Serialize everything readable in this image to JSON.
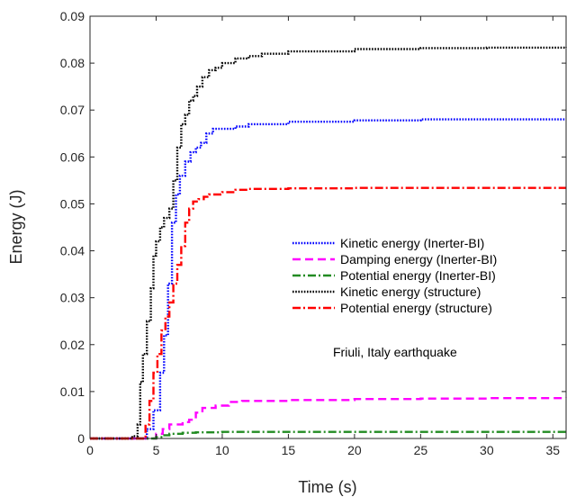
{
  "chart_data": {
    "type": "line",
    "title": "",
    "xlabel": "Time (s)",
    "ylabel": "Energy (J)",
    "xlim": [
      0,
      36
    ],
    "ylim": [
      0,
      0.09
    ],
    "xticks": [
      "0",
      "5",
      "10",
      "15",
      "20",
      "25",
      "30",
      "35"
    ],
    "yticks": [
      "0",
      "0.01",
      "0.02",
      "0.03",
      "0.04",
      "0.05",
      "0.06",
      "0.07",
      "0.08",
      "0.09"
    ],
    "grid": false,
    "legend_position": "center-right",
    "annotation": "Friuli, Italy earthquake",
    "series": [
      {
        "name": "Kinetic energy (Inerter-BI)",
        "color": "#0000ff",
        "style": "dotted",
        "x": [
          0,
          3.8,
          4.3,
          4.8,
          5.3,
          5.6,
          5.9,
          6.2,
          6.5,
          6.8,
          7.2,
          7.6,
          8.0,
          8.4,
          8.8,
          9.3,
          10,
          11,
          12,
          15,
          20,
          25,
          30,
          36
        ],
        "y": [
          0,
          0,
          0.002,
          0.006,
          0.014,
          0.022,
          0.033,
          0.046,
          0.052,
          0.056,
          0.059,
          0.061,
          0.062,
          0.063,
          0.065,
          0.066,
          0.066,
          0.0665,
          0.067,
          0.0675,
          0.0678,
          0.068,
          0.068,
          0.068
        ]
      },
      {
        "name": "Damping energy (Inerter-BI)",
        "color": "#ff00ff",
        "style": "dashed",
        "x": [
          0,
          4.5,
          5.0,
          5.5,
          6.0,
          7.0,
          7.5,
          8.0,
          8.5,
          9.5,
          10.5,
          11.5,
          15,
          20,
          25,
          30,
          36
        ],
        "y": [
          0,
          0,
          0.001,
          0.002,
          0.003,
          0.0035,
          0.004,
          0.0055,
          0.0065,
          0.007,
          0.0078,
          0.008,
          0.0082,
          0.0084,
          0.0085,
          0.0086,
          0.0087
        ]
      },
      {
        "name": "Potential energy (Inerter-BI)",
        "color": "#228b22",
        "style": "dashdot",
        "x": [
          0,
          4.5,
          5.0,
          5.5,
          6.0,
          7.0,
          8.0,
          10,
          15,
          20,
          25,
          30,
          36
        ],
        "y": [
          0,
          0,
          0.0003,
          0.0007,
          0.001,
          0.0012,
          0.0013,
          0.0014,
          0.0014,
          0.0014,
          0.0014,
          0.0014,
          0.0014
        ]
      },
      {
        "name": "Kinetic energy (structure)",
        "color": "#000000",
        "style": "dotted",
        "x": [
          0,
          3.2,
          3.6,
          3.8,
          4.0,
          4.3,
          4.6,
          4.8,
          5.0,
          5.3,
          5.6,
          6.0,
          6.3,
          6.6,
          6.9,
          7.2,
          7.5,
          7.8,
          8.1,
          8.5,
          9.0,
          9.5,
          10,
          11,
          12,
          13,
          15,
          20,
          25,
          30,
          36
        ],
        "y": [
          0,
          0.0005,
          0.003,
          0.012,
          0.018,
          0.025,
          0.032,
          0.039,
          0.042,
          0.045,
          0.047,
          0.049,
          0.055,
          0.062,
          0.067,
          0.069,
          0.072,
          0.073,
          0.075,
          0.077,
          0.0785,
          0.079,
          0.08,
          0.081,
          0.0815,
          0.082,
          0.0825,
          0.083,
          0.0832,
          0.0833,
          0.0834
        ]
      },
      {
        "name": "Potential energy (structure)",
        "color": "#ff0000",
        "style": "dashdot",
        "x": [
          0,
          3.9,
          4.2,
          4.5,
          4.8,
          5.1,
          5.4,
          5.7,
          6.0,
          6.3,
          6.6,
          6.9,
          7.2,
          7.5,
          7.8,
          8.2,
          8.6,
          9.0,
          10,
          11,
          12,
          15,
          20,
          25,
          30,
          36
        ],
        "y": [
          0,
          0,
          0.003,
          0.008,
          0.014,
          0.018,
          0.023,
          0.026,
          0.029,
          0.033,
          0.037,
          0.041,
          0.046,
          0.049,
          0.0505,
          0.051,
          0.0515,
          0.052,
          0.0525,
          0.053,
          0.0532,
          0.0533,
          0.0534,
          0.0534,
          0.0534,
          0.0534
        ]
      }
    ]
  }
}
